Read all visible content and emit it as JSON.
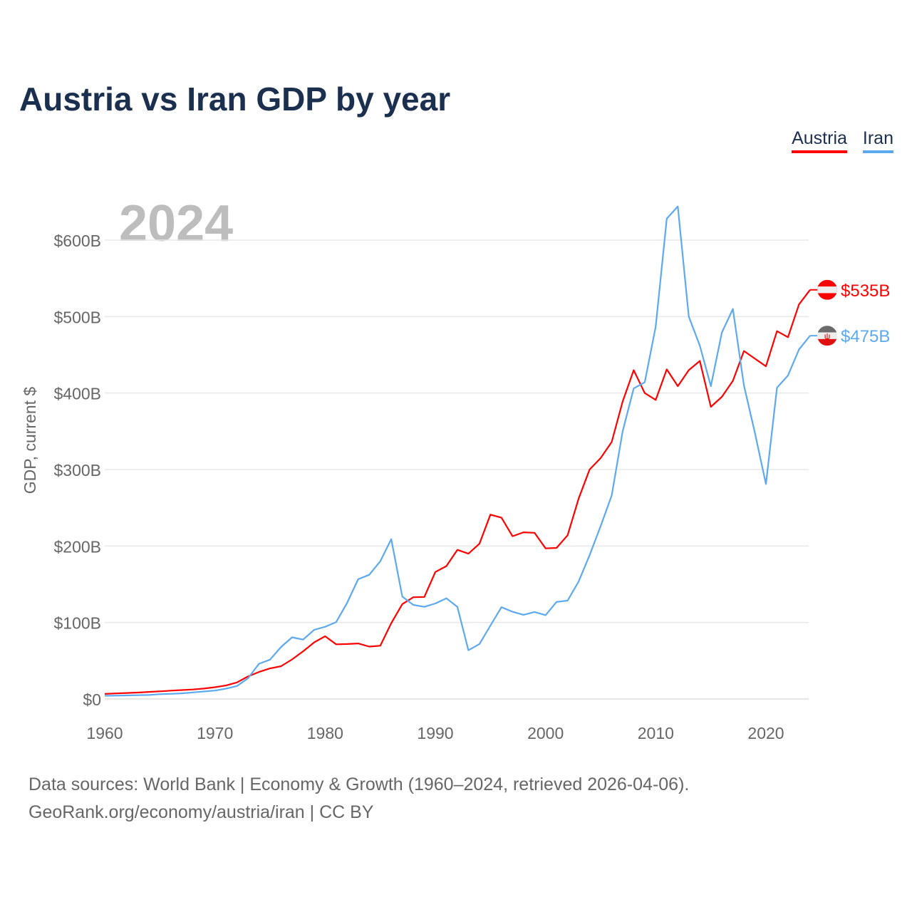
{
  "chart_data": {
    "type": "line",
    "title": "Austria vs Iran GDP by year",
    "ylabel": "GDP, current $",
    "xlabel": "",
    "current_year_label": "2024",
    "xlim": [
      1960,
      2024
    ],
    "ylim": [
      0,
      650
    ],
    "x_ticks": [
      1960,
      1970,
      1980,
      1990,
      2000,
      2010,
      2020
    ],
    "y_ticks": [
      0,
      100,
      200,
      300,
      400,
      500,
      600
    ],
    "y_tick_labels": [
      "$0",
      "$100B",
      "$200B",
      "$300B",
      "$400B",
      "$500B",
      "$600B"
    ],
    "grid": true,
    "legend_placement": "top-right",
    "x": [
      1960,
      1961,
      1962,
      1963,
      1964,
      1965,
      1966,
      1967,
      1968,
      1969,
      1970,
      1971,
      1972,
      1973,
      1974,
      1975,
      1976,
      1977,
      1978,
      1979,
      1980,
      1981,
      1982,
      1983,
      1984,
      1985,
      1986,
      1987,
      1988,
      1989,
      1990,
      1991,
      1992,
      1993,
      1994,
      1995,
      1996,
      1997,
      1998,
      1999,
      2000,
      2001,
      2002,
      2003,
      2004,
      2005,
      2006,
      2007,
      2008,
      2009,
      2010,
      2011,
      2012,
      2013,
      2014,
      2015,
      2016,
      2017,
      2018,
      2019,
      2020,
      2021,
      2022,
      2023,
      2024
    ],
    "series": [
      {
        "name": "Austria",
        "color": "#ff0000",
        "end_label": "$535B",
        "values": [
          6.6,
          7.3,
          7.8,
          8.4,
          9.2,
          10,
          10.9,
          11.6,
          12.4,
          13.6,
          15.4,
          17.6,
          21.6,
          29.4,
          35.3,
          40,
          42.9,
          51.7,
          62.3,
          74,
          82,
          71.5,
          71.8,
          72.6,
          68.5,
          69.6,
          99,
          124,
          133,
          133.3,
          166,
          173.8,
          195,
          190,
          203,
          241,
          237,
          212.8,
          217.9,
          217.3,
          197,
          197.5,
          214,
          262,
          300,
          315,
          336,
          389,
          430,
          400,
          391,
          431,
          409,
          430,
          442,
          382,
          395,
          416,
          455,
          445,
          435,
          481,
          473,
          516,
          535
        ]
      },
      {
        "name": "Iran",
        "color": "#5da9ef",
        "end_label": "$475B",
        "values": [
          4.2,
          4.4,
          4.7,
          4.9,
          5.2,
          6.2,
          6.7,
          7.4,
          8.6,
          9.8,
          11,
          13.4,
          17,
          27,
          46,
          51.4,
          68,
          80.6,
          77.6,
          90.4,
          94.4,
          100.5,
          125.9,
          156.6,
          162.4,
          180,
          209,
          134,
          123,
          120.5,
          124.8,
          131.6,
          120.5,
          63.7,
          71.8,
          96,
          120,
          114,
          110,
          113.8,
          109.6,
          126.9,
          128.6,
          153.5,
          188,
          226,
          266,
          350,
          406,
          414,
          487,
          628,
          644,
          500,
          462,
          409,
          479,
          510,
          410,
          348,
          281,
          407,
          423,
          457,
          475
        ]
      }
    ]
  },
  "source": {
    "line1": "Data sources: World Bank | Economy & Growth (1960–2024, retrieved 2026-04-06).",
    "line2": "GeoRank.org/economy/austria/iran | CC BY"
  }
}
